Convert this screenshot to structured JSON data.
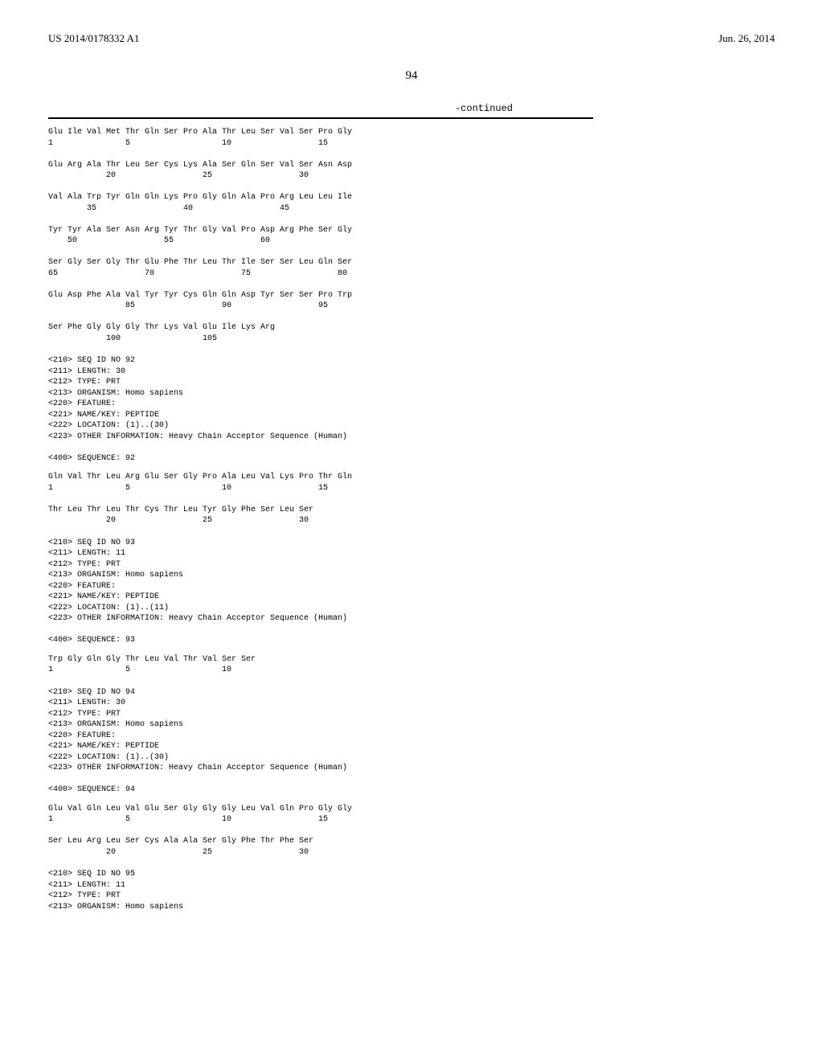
{
  "header": {
    "pub_number": "US 2014/0178332 A1",
    "pub_date": "Jun. 26, 2014"
  },
  "page_number": "94",
  "continued_label": "-continued",
  "seq91_lines": [
    "Glu Ile Val Met Thr Gln Ser Pro Ala Thr Leu Ser Val Ser Pro Gly",
    "1               5                   10                  15",
    "",
    "Glu Arg Ala Thr Leu Ser Cys Lys Ala Ser Gln Ser Val Ser Asn Asp",
    "            20                  25                  30",
    "",
    "Val Ala Trp Tyr Gln Gln Lys Pro Gly Gln Ala Pro Arg Leu Leu Ile",
    "        35                  40                  45",
    "",
    "Tyr Tyr Ala Ser Asn Arg Tyr Thr Gly Val Pro Asp Arg Phe Ser Gly",
    "    50                  55                  60",
    "",
    "Ser Gly Ser Gly Thr Glu Phe Thr Leu Thr Ile Ser Ser Leu Gln Ser",
    "65                  70                  75                  80",
    "",
    "Glu Asp Phe Ala Val Tyr Tyr Cys Gln Gln Asp Tyr Ser Ser Pro Trp",
    "                85                  90                  95",
    "",
    "Ser Phe Gly Gly Gly Thr Lys Val Glu Ile Lys Arg",
    "            100                 105"
  ],
  "meta92": [
    "<210> SEQ ID NO 92",
    "<211> LENGTH: 30",
    "<212> TYPE: PRT",
    "<213> ORGANISM: Homo sapiens",
    "<220> FEATURE:",
    "<221> NAME/KEY: PEPTIDE",
    "<222> LOCATION: (1)..(30)",
    "<223> OTHER INFORMATION: Heavy Chain Acceptor Sequence (Human)",
    "",
    "<400> SEQUENCE: 92"
  ],
  "seq92_lines": [
    "Gln Val Thr Leu Arg Glu Ser Gly Pro Ala Leu Val Lys Pro Thr Gln",
    "1               5                   10                  15",
    "",
    "Thr Leu Thr Leu Thr Cys Thr Leu Tyr Gly Phe Ser Leu Ser",
    "            20                  25                  30"
  ],
  "meta93": [
    "<210> SEQ ID NO 93",
    "<211> LENGTH: 11",
    "<212> TYPE: PRT",
    "<213> ORGANISM: Homo sapiens",
    "<220> FEATURE:",
    "<221> NAME/KEY: PEPTIDE",
    "<222> LOCATION: (1)..(11)",
    "<223> OTHER INFORMATION: Heavy Chain Acceptor Sequence (Human)",
    "",
    "<400> SEQUENCE: 93"
  ],
  "seq93_lines": [
    "Trp Gly Gln Gly Thr Leu Val Thr Val Ser Ser",
    "1               5                   10"
  ],
  "meta94": [
    "<210> SEQ ID NO 94",
    "<211> LENGTH: 30",
    "<212> TYPE: PRT",
    "<213> ORGANISM: Homo sapiens",
    "<220> FEATURE:",
    "<221> NAME/KEY: PEPTIDE",
    "<222> LOCATION: (1)..(30)",
    "<223> OTHER INFORMATION: Heavy Chain Acceptor Sequence (Human)",
    "",
    "<400> SEQUENCE: 94"
  ],
  "seq94_lines": [
    "Glu Val Gln Leu Val Glu Ser Gly Gly Gly Leu Val Gln Pro Gly Gly",
    "1               5                   10                  15",
    "",
    "Ser Leu Arg Leu Ser Cys Ala Ala Ser Gly Phe Thr Phe Ser",
    "            20                  25                  30"
  ],
  "meta95": [
    "<210> SEQ ID NO 95",
    "<211> LENGTH: 11",
    "<212> TYPE: PRT",
    "<213> ORGANISM: Homo sapiens"
  ]
}
